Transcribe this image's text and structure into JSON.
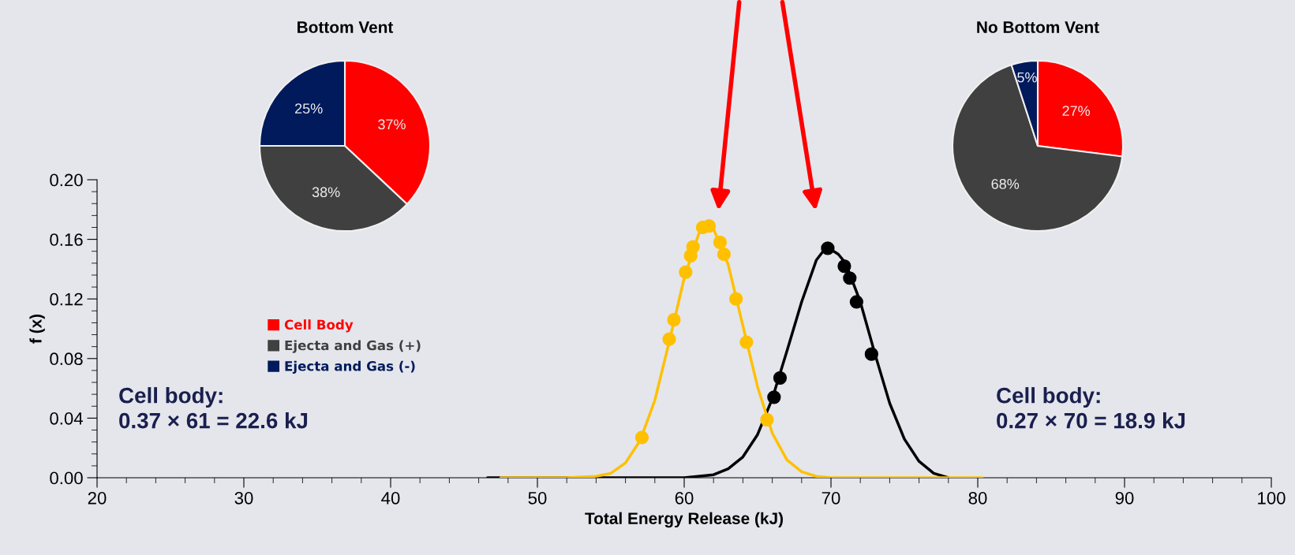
{
  "chart_data": [
    {
      "type": "line",
      "xlabel": "Total Energy Release (kJ)",
      "ylabel": "f (x)",
      "xlim": [
        20,
        100
      ],
      "ylim": [
        0,
        0.2
      ],
      "xticks": [
        20,
        {
          "value": 22,
          "label": null
        },
        {
          "value": 24,
          "label": null
        },
        {
          "value": 26,
          "label": null
        },
        {
          "value": 28,
          "label": null
        },
        30,
        {
          "value": 32,
          "label": null
        },
        {
          "value": 34,
          "label": null
        },
        {
          "value": 36,
          "label": null
        },
        {
          "value": 38,
          "label": null
        },
        40,
        {
          "value": 42,
          "label": null
        },
        {
          "value": 44,
          "label": null
        },
        {
          "value": 46,
          "label": null
        },
        {
          "value": 48,
          "label": null
        },
        50,
        {
          "value": 52,
          "label": null
        },
        {
          "value": 54,
          "label": null
        },
        {
          "value": 56,
          "label": null
        },
        {
          "value": 58,
          "label": null
        },
        60,
        {
          "value": 62,
          "label": null
        },
        {
          "value": 64,
          "label": null
        },
        {
          "value": 66,
          "label": null
        },
        {
          "value": 68,
          "label": null
        },
        70,
        {
          "value": 72,
          "label": null
        },
        {
          "value": 74,
          "label": null
        },
        {
          "value": 76,
          "label": null
        },
        {
          "value": 78,
          "label": null
        },
        80,
        {
          "value": 82,
          "label": null
        },
        {
          "value": 84,
          "label": null
        },
        {
          "value": 86,
          "label": null
        },
        {
          "value": 88,
          "label": null
        },
        90,
        {
          "value": 92,
          "label": null
        },
        {
          "value": 94,
          "label": null
        },
        {
          "value": 96,
          "label": null
        },
        {
          "value": 98,
          "label": null
        },
        100
      ],
      "yticks": [
        {
          "value": 0,
          "label": "0.00"
        },
        {
          "value": 0.008,
          "label": null
        },
        {
          "value": 0.016,
          "label": null
        },
        {
          "value": 0.024,
          "label": null
        },
        {
          "value": 0.032,
          "label": null
        },
        {
          "value": 0.04,
          "label": "0.04"
        },
        {
          "value": 0.048,
          "label": null
        },
        {
          "value": 0.056,
          "label": null
        },
        {
          "value": 0.064,
          "label": null
        },
        {
          "value": 0.072,
          "label": null
        },
        {
          "value": 0.08,
          "label": "0.08"
        },
        {
          "value": 0.088,
          "label": null
        },
        {
          "value": 0.096,
          "label": null
        },
        {
          "value": 0.104,
          "label": null
        },
        {
          "value": 0.112,
          "label": null
        },
        {
          "value": 0.12,
          "label": "0.12"
        },
        {
          "value": 0.128,
          "label": null
        },
        {
          "value": 0.136,
          "label": null
        },
        {
          "value": 0.144,
          "label": null
        },
        {
          "value": 0.152,
          "label": null
        },
        {
          "value": 0.16,
          "label": "0.16"
        },
        {
          "value": 0.168,
          "label": null
        },
        {
          "value": 0.176,
          "label": null
        },
        {
          "value": 0.184,
          "label": null
        },
        {
          "value": 0.192,
          "label": null
        },
        {
          "value": 0.2,
          "label": "0.20"
        }
      ],
      "series": [
        {
          "type": "line",
          "color": "#000000",
          "marker": "none",
          "x": [
            46.6,
            60,
            62,
            63,
            64,
            65,
            66,
            67,
            68,
            69,
            69.7,
            70.5,
            71,
            72,
            73,
            74,
            75,
            76,
            77,
            78
          ],
          "values": [
            0,
            0,
            0.002,
            0.006,
            0.014,
            0.029,
            0.053,
            0.085,
            0.118,
            0.146,
            0.155,
            0.15,
            0.144,
            0.118,
            0.083,
            0.05,
            0.026,
            0.011,
            0.003,
            0
          ]
        },
        {
          "type": "line",
          "color": "#ffc000",
          "marker": "none",
          "x": [
            47.5,
            52,
            54,
            55,
            56,
            57,
            58,
            59,
            60,
            61,
            61.6,
            62,
            63,
            64,
            65,
            66,
            67,
            68,
            69,
            70,
            80.3
          ],
          "values": [
            0,
            0,
            0.001,
            0.003,
            0.01,
            0.025,
            0.052,
            0.092,
            0.134,
            0.164,
            0.169,
            0.167,
            0.143,
            0.102,
            0.061,
            0.03,
            0.012,
            0.004,
            0.001,
            0,
            0
          ]
        },
        {
          "type": "scatter",
          "color": "#ffc000",
          "marker": "circle",
          "x": [
            57.12,
            58.98,
            59.3,
            60.1,
            60.44,
            60.6,
            61.26,
            61.69,
            62.44,
            62.71,
            63.53,
            64.24,
            65.64
          ],
          "values": [
            0.027,
            0.093,
            0.106,
            0.138,
            0.149,
            0.155,
            0.168,
            0.169,
            0.158,
            0.15,
            0.12,
            0.091,
            0.039
          ]
        },
        {
          "type": "scatter",
          "color": "#000000",
          "marker": "circle",
          "x": [
            66.12,
            66.53,
            69.78,
            70.91,
            71.28,
            71.74,
            72.76
          ],
          "values": [
            0.054,
            0.067,
            0.154,
            0.142,
            0.134,
            0.118,
            0.083
          ]
        }
      ],
      "annotations": [
        "Cell body:\n0.37 × 61 = 22.6 kJ",
        "Cell body:\n0.27 × 70 = 18.9 kJ"
      ]
    },
    {
      "type": "pie",
      "title": "Bottom Vent",
      "categories": [
        "Cell Body",
        "Ejecta and Gas (+)",
        "Ejecta and Gas (-)"
      ],
      "values": [
        37,
        38,
        25
      ],
      "value_labels": [
        "37%",
        "38%",
        "25%"
      ],
      "colors": [
        "#ff0000",
        "#404040",
        "#001a5c"
      ],
      "legend": "bottom"
    },
    {
      "type": "pie",
      "title": "No Bottom Vent",
      "categories": [
        null,
        null,
        null
      ],
      "values": [
        27,
        68,
        5
      ],
      "value_labels": [
        "27%",
        "68%",
        "5%"
      ],
      "colors": [
        "#ff0000",
        "#404040",
        "#001a5c"
      ]
    }
  ]
}
